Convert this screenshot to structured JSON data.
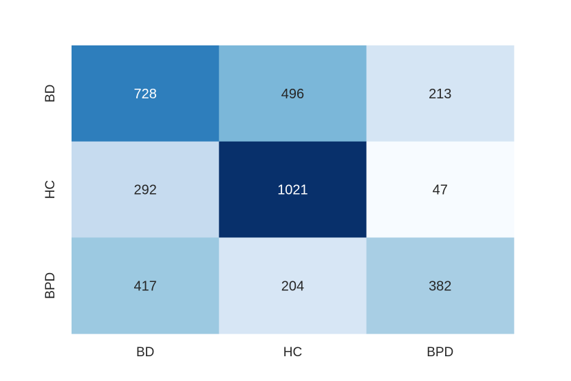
{
  "chart_data": {
    "type": "heatmap",
    "title": "",
    "xlabel": "",
    "ylabel": "",
    "x_categories": [
      "BD",
      "HC",
      "BPD"
    ],
    "y_categories": [
      "BD",
      "HC",
      "BPD"
    ],
    "values": [
      [
        728,
        496,
        213
      ],
      [
        292,
        1021,
        47
      ],
      [
        417,
        204,
        382
      ]
    ],
    "colormap": "Blues",
    "color_range": [
      47,
      1021
    ],
    "low_color": "#f7fbff",
    "high_color": "#08306b",
    "light_text_color": "#ffffff",
    "dark_text_color": "#262626",
    "grid": false,
    "legend": "none"
  }
}
